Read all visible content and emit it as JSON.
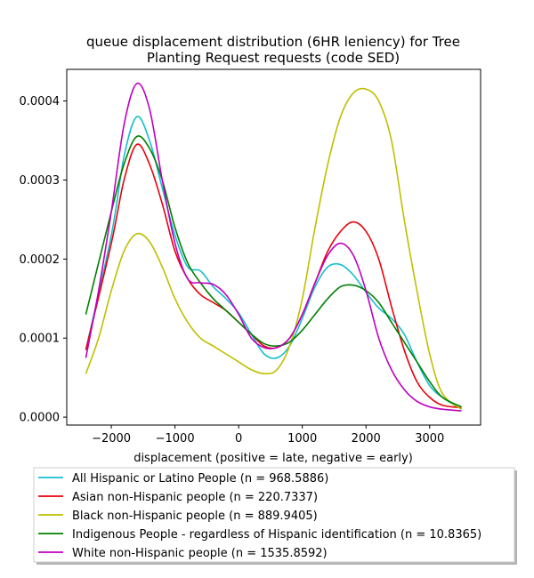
{
  "chart_data": {
    "type": "line",
    "title": "queue displacement distribution (6HR leniency) for Tree\nPlanting Request  requests (code SED)",
    "xlabel": "displacement (positive = late, negative = early)",
    "ylabel": "",
    "xlim": [
      -2700,
      3800
    ],
    "ylim": [
      -1e-05,
      0.00044
    ],
    "x_ticks": [
      -2000,
      -1000,
      0,
      1000,
      2000,
      3000
    ],
    "x_tick_labels": [
      "−2000",
      "−1000",
      "0",
      "1000",
      "2000",
      "3000"
    ],
    "y_ticks": [
      0,
      0.0001,
      0.0002,
      0.0003,
      0.0004
    ],
    "y_tick_labels": [
      "0.0000",
      "0.0001",
      "0.0002",
      "0.0003",
      "0.0004"
    ],
    "grid": false,
    "legend_position": "below",
    "series": [
      {
        "name": "All Hispanic or Latino People (n = 968.5886)",
        "color": "#17becf",
        "points": [
          [
            -2400,
            8.5e-05
          ],
          [
            -2000,
            0.00023
          ],
          [
            -1800,
            0.00033
          ],
          [
            -1600,
            0.00038
          ],
          [
            -1400,
            0.00035
          ],
          [
            -1200,
            0.00029
          ],
          [
            -1000,
            0.00023
          ],
          [
            -800,
            0.00019
          ],
          [
            -600,
            0.000185
          ],
          [
            -400,
            0.000165
          ],
          [
            -200,
            0.00015
          ],
          [
            0,
            0.000132
          ],
          [
            200,
            0.000105
          ],
          [
            400,
            8e-05
          ],
          [
            600,
            7.5e-05
          ],
          [
            800,
            9e-05
          ],
          [
            1000,
            0.000125
          ],
          [
            1200,
            0.000165
          ],
          [
            1400,
            0.00019
          ],
          [
            1600,
            0.000193
          ],
          [
            1800,
            0.00018
          ],
          [
            2000,
            0.000158
          ],
          [
            2200,
            0.000138
          ],
          [
            2400,
            0.000125
          ],
          [
            2600,
            0.000105
          ],
          [
            2800,
            7e-05
          ],
          [
            3000,
            4e-05
          ],
          [
            3200,
            2.5e-05
          ],
          [
            3500,
            1e-05
          ]
        ]
      },
      {
        "name": "Asian non-Hispanic people (n = 220.7337)",
        "color": "#e8000b",
        "points": [
          [
            -2400,
            8.5e-05
          ],
          [
            -2000,
            0.00022
          ],
          [
            -1800,
            0.0003
          ],
          [
            -1600,
            0.000345
          ],
          [
            -1400,
            0.00032
          ],
          [
            -1200,
            0.00027
          ],
          [
            -1000,
            0.00021
          ],
          [
            -800,
            0.000175
          ],
          [
            -600,
            0.000155
          ],
          [
            -400,
            0.000145
          ],
          [
            -200,
            0.000135
          ],
          [
            0,
            0.00012
          ],
          [
            200,
            0.000105
          ],
          [
            400,
            9e-05
          ],
          [
            600,
            8.8e-05
          ],
          [
            800,
            0.0001
          ],
          [
            1000,
            0.00013
          ],
          [
            1200,
            0.00017
          ],
          [
            1400,
            0.00021
          ],
          [
            1600,
            0.000235
          ],
          [
            1800,
            0.000247
          ],
          [
            2000,
            0.000235
          ],
          [
            2200,
            0.0002
          ],
          [
            2400,
            0.00014
          ],
          [
            2600,
            8.5e-05
          ],
          [
            2800,
            4.5e-05
          ],
          [
            3000,
            2.5e-05
          ],
          [
            3200,
            1.5e-05
          ],
          [
            3500,
            1.2e-05
          ]
        ]
      },
      {
        "name": "Black non-Hispanic people (n = 889.9405)",
        "color": "#bfbf00",
        "points": [
          [
            -2400,
            5.5e-05
          ],
          [
            -2200,
            0.0001
          ],
          [
            -2000,
            0.00016
          ],
          [
            -1800,
            0.00021
          ],
          [
            -1600,
            0.000232
          ],
          [
            -1400,
            0.000222
          ],
          [
            -1200,
            0.00019
          ],
          [
            -1000,
            0.00015
          ],
          [
            -800,
            0.00012
          ],
          [
            -600,
            0.0001
          ],
          [
            -400,
            9e-05
          ],
          [
            -200,
            8e-05
          ],
          [
            0,
            7e-05
          ],
          [
            200,
            6e-05
          ],
          [
            400,
            5.5e-05
          ],
          [
            600,
            6e-05
          ],
          [
            800,
            9e-05
          ],
          [
            1000,
            0.00015
          ],
          [
            1200,
            0.00024
          ],
          [
            1400,
            0.00032
          ],
          [
            1600,
            0.00038
          ],
          [
            1800,
            0.00041
          ],
          [
            2000,
            0.000415
          ],
          [
            2200,
            0.0004
          ],
          [
            2400,
            0.00035
          ],
          [
            2600,
            0.00025
          ],
          [
            2800,
            0.00016
          ],
          [
            3000,
            8e-05
          ],
          [
            3200,
            3e-05
          ],
          [
            3500,
            1e-05
          ]
        ]
      },
      {
        "name": "Indigenous People - regardless of Hispanic identification (n = 10.8365)",
        "color": "#008000",
        "points": [
          [
            -2400,
            0.00013
          ],
          [
            -2000,
            0.00026
          ],
          [
            -1800,
            0.00032
          ],
          [
            -1600,
            0.000355
          ],
          [
            -1400,
            0.00034
          ],
          [
            -1200,
            0.0003
          ],
          [
            -1000,
            0.00024
          ],
          [
            -800,
            0.000195
          ],
          [
            -600,
            0.00017
          ],
          [
            -400,
            0.00015
          ],
          [
            -200,
            0.000135
          ],
          [
            0,
            0.00012
          ],
          [
            200,
            0.000105
          ],
          [
            400,
            9.3e-05
          ],
          [
            600,
            9e-05
          ],
          [
            800,
            9.5e-05
          ],
          [
            1000,
            0.00011
          ],
          [
            1200,
            0.00013
          ],
          [
            1400,
            0.00015
          ],
          [
            1600,
            0.000165
          ],
          [
            1800,
            0.000167
          ],
          [
            2000,
            0.00016
          ],
          [
            2200,
            0.000145
          ],
          [
            2400,
            0.00012
          ],
          [
            2600,
            9.5e-05
          ],
          [
            2800,
            7e-05
          ],
          [
            3000,
            4.5e-05
          ],
          [
            3200,
            2.5e-05
          ],
          [
            3500,
            1.3e-05
          ]
        ]
      },
      {
        "name": "White non-Hispanic people (n = 1535.8592)",
        "color": "#bf00bf",
        "points": [
          [
            -2400,
            7.5e-05
          ],
          [
            -2200,
            0.00016
          ],
          [
            -2000,
            0.00026
          ],
          [
            -1800,
            0.00037
          ],
          [
            -1600,
            0.000422
          ],
          [
            -1400,
            0.00039
          ],
          [
            -1200,
            0.0003
          ],
          [
            -1000,
            0.00022
          ],
          [
            -800,
            0.000175
          ],
          [
            -600,
            0.00017
          ],
          [
            -400,
            0.000168
          ],
          [
            -200,
            0.000155
          ],
          [
            0,
            0.00013
          ],
          [
            200,
            0.0001
          ],
          [
            400,
            8.8e-05
          ],
          [
            600,
            8.8e-05
          ],
          [
            800,
            0.0001
          ],
          [
            1000,
            0.00013
          ],
          [
            1200,
            0.00017
          ],
          [
            1400,
            0.000205
          ],
          [
            1600,
            0.00022
          ],
          [
            1800,
            0.000205
          ],
          [
            2000,
            0.00016
          ],
          [
            2200,
            0.0001
          ],
          [
            2400,
            6e-05
          ],
          [
            2600,
            3.5e-05
          ],
          [
            2800,
            2e-05
          ],
          [
            3000,
            1.3e-05
          ],
          [
            3200,
            1e-05
          ],
          [
            3500,
            8e-06
          ]
        ]
      }
    ]
  }
}
